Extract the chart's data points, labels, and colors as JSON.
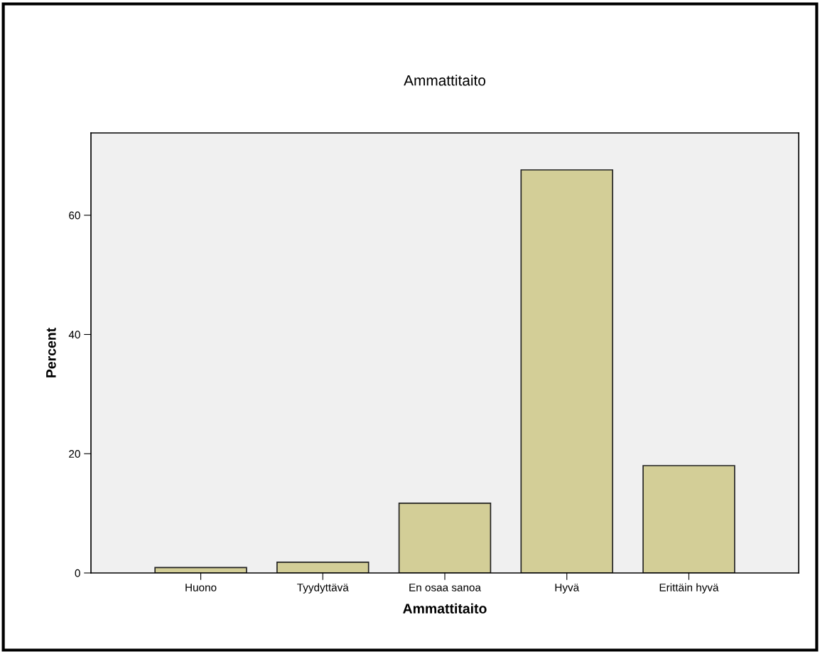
{
  "chart_data": {
    "type": "bar",
    "title": "Ammattitaito",
    "xlabel": "Ammattitaito",
    "ylabel": "Percent",
    "categories": [
      "Huono",
      "Tyydyttävä",
      "En osaa sanoa",
      "Hyvä",
      "Erittäin hyvä"
    ],
    "values": [
      0.9,
      1.8,
      11.7,
      67.6,
      18.0
    ],
    "color": "#d3ce97",
    "ylim": [
      0,
      73.8
    ],
    "yticks": [
      0,
      20,
      40,
      60
    ],
    "grid": false,
    "legend": false
  }
}
